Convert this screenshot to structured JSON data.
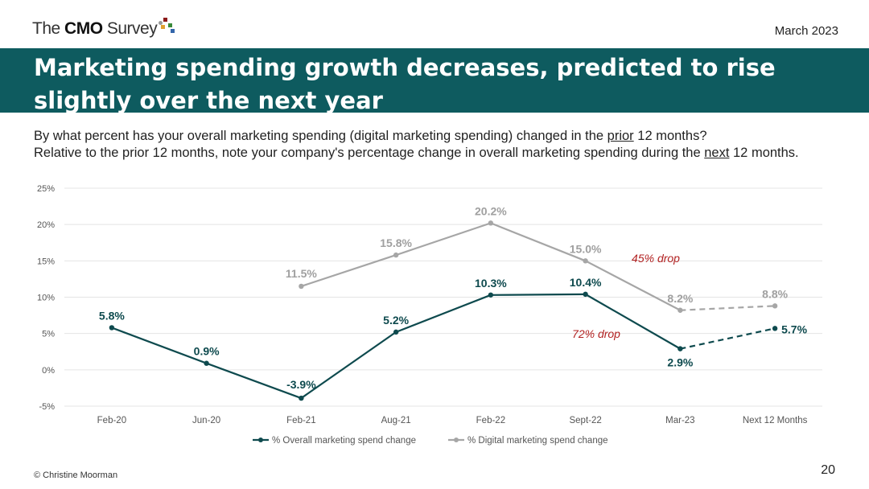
{
  "header": {
    "logo": "The CMO Survey",
    "logo_the": "The ",
    "logo_cmo": "CMO",
    "logo_survey": " Survey",
    "date": "March 2023"
  },
  "title": "Marketing spending growth decreases, predicted to rise slightly over the next year",
  "question": {
    "line1_a": "By what percent has your overall marketing spending (digital marketing spending) changed in the ",
    "line1_u": "prior",
    "line1_b": " 12 months?",
    "line2_a": "Relative to the prior 12 months, note your company's percentage change in overall marketing spending during the ",
    "line2_u": "next",
    "line2_b": " 12 months."
  },
  "chart_data": {
    "type": "line",
    "categories": [
      "Feb-20",
      "Jun-20",
      "Feb-21",
      "Aug-21",
      "Feb-22",
      "Sept-22",
      "Mar-23",
      "Next 12 Months"
    ],
    "ylim": [
      -5,
      25
    ],
    "yticks": [
      -5,
      0,
      5,
      10,
      15,
      20,
      25
    ],
    "ytick_labels": [
      "-5%",
      "0%",
      "5%",
      "10%",
      "15%",
      "20%",
      "25%"
    ],
    "grid": true,
    "legend_position": "bottom",
    "series": [
      {
        "name": "% Overall marketing spend change",
        "color": "#0e4a4e",
        "values": [
          5.8,
          0.9,
          -3.9,
          5.2,
          10.3,
          10.4,
          2.9,
          5.7
        ],
        "labels": [
          "5.8%",
          "0.9%",
          "-3.9%",
          "5.2%",
          "10.3%",
          "10.4%",
          "2.9%",
          "5.7%"
        ],
        "dashed_last_segment": true
      },
      {
        "name": "% Digital marketing spend change",
        "color": "#a6a6a6",
        "values": [
          null,
          null,
          11.5,
          15.8,
          20.2,
          15.0,
          8.2,
          8.8
        ],
        "labels": [
          "",
          "",
          "11.5%",
          "15.8%",
          "20.2%",
          "15.0%",
          "8.2%",
          "8.8%"
        ],
        "dashed_last_segment": true
      }
    ],
    "annotations": [
      {
        "text": "45% drop",
        "color": "#b22222"
      },
      {
        "text": "72% drop",
        "color": "#b22222"
      }
    ]
  },
  "footer": {
    "copyright": "© Christine Moorman",
    "page": "20"
  }
}
